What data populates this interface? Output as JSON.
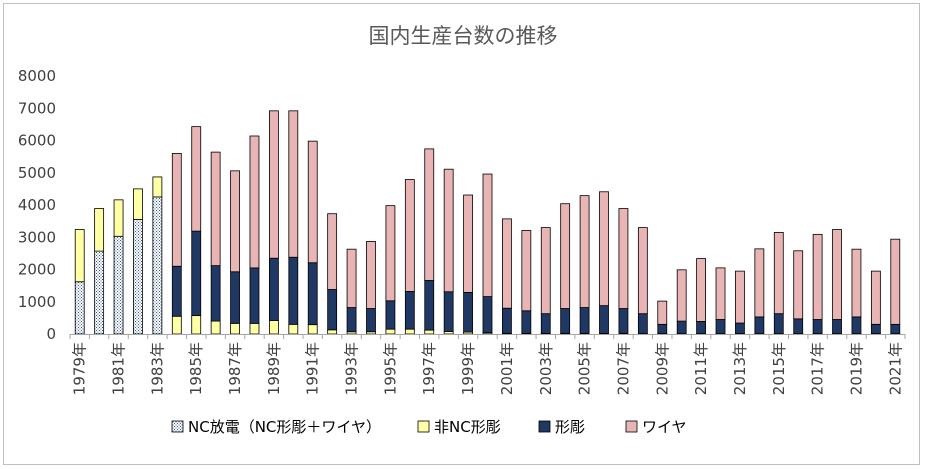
{
  "chart_data": {
    "type": "bar",
    "stacked": true,
    "title": "国内生産台数の推移",
    "xlabel": "",
    "ylabel": "",
    "ylim": [
      0,
      8000
    ],
    "yticks": [
      0,
      1000,
      2000,
      3000,
      4000,
      5000,
      6000,
      7000,
      8000
    ],
    "grid": false,
    "legend_position": "bottom",
    "categories": [
      "1979年",
      "1980年",
      "1981年",
      "1982年",
      "1983年",
      "1984年",
      "1985年",
      "1986年",
      "1987年",
      "1988年",
      "1989年",
      "1990年",
      "1991年",
      "1992年",
      "1993年",
      "1994年",
      "1995年",
      "1996年",
      "1997年",
      "1998年",
      "1999年",
      "2000年",
      "2001年",
      "2002年",
      "2003年",
      "2004年",
      "2005年",
      "2006年",
      "2007年",
      "2008年",
      "2009年",
      "2010年",
      "2011年",
      "2012年",
      "2013年",
      "2014年",
      "2015年",
      "2016年",
      "2017年",
      "2018年",
      "2019年",
      "2020年",
      "2021年"
    ],
    "tick_labels": [
      "1979年",
      "",
      "1981年",
      "",
      "1983年",
      "",
      "1985年",
      "",
      "1987年",
      "",
      "1989年",
      "",
      "1991年",
      "",
      "1993年",
      "",
      "1995年",
      "",
      "1997年",
      "",
      "1999年",
      "",
      "2001年",
      "",
      "2003年",
      "",
      "2005年",
      "",
      "2007年",
      "",
      "2009年",
      "",
      "2011年",
      "",
      "2013年",
      "",
      "2015年",
      "",
      "2017年",
      "",
      "2019年",
      "",
      "2021年"
    ],
    "series": [
      {
        "name": "NC放電（NC形彫＋ワイヤ）",
        "fill": "dots",
        "color": "#dae3f3",
        "values": [
          1620,
          2570,
          3030,
          3550,
          4250,
          0,
          0,
          0,
          0,
          0,
          0,
          0,
          0,
          0,
          0,
          0,
          0,
          0,
          0,
          0,
          0,
          0,
          0,
          0,
          0,
          0,
          0,
          0,
          0,
          0,
          0,
          0,
          0,
          0,
          0,
          0,
          0,
          0,
          0,
          0,
          0,
          0,
          0
        ]
      },
      {
        "name": "非NC形彫",
        "fill": "solid",
        "color": "#ffffa5",
        "values": [
          1620,
          1320,
          1130,
          950,
          620,
          550,
          570,
          400,
          330,
          330,
          420,
          300,
          290,
          130,
          70,
          70,
          150,
          150,
          120,
          80,
          60,
          40,
          20,
          20,
          20,
          20,
          20,
          20,
          20,
          10,
          10,
          10,
          10,
          10,
          10,
          10,
          10,
          10,
          10,
          10,
          10,
          10,
          10
        ]
      },
      {
        "name": "形彫",
        "fill": "solid",
        "color": "#1f3864",
        "values": [
          0,
          0,
          0,
          0,
          0,
          1550,
          2620,
          1720,
          1600,
          1720,
          1930,
          2080,
          1920,
          1250,
          750,
          720,
          880,
          1170,
          1540,
          1230,
          1230,
          1120,
          780,
          700,
          610,
          770,
          800,
          860,
          770,
          620,
          290,
          390,
          380,
          440,
          330,
          520,
          620,
          460,
          440,
          440,
          520,
          290,
          290
        ]
      },
      {
        "name": "ワイヤ",
        "fill": "solid",
        "color": "#e8b4b4",
        "values": [
          0,
          0,
          0,
          0,
          0,
          3500,
          3240,
          3520,
          3130,
          4090,
          4570,
          4540,
          3770,
          2350,
          1810,
          2080,
          2950,
          3470,
          4080,
          3800,
          3020,
          3800,
          2770,
          2490,
          2670,
          3250,
          3470,
          3530,
          3100,
          2670,
          720,
          1590,
          1950,
          1600,
          1610,
          2110,
          2520,
          2110,
          2640,
          2790,
          2100,
          1650,
          2640
        ]
      }
    ]
  }
}
